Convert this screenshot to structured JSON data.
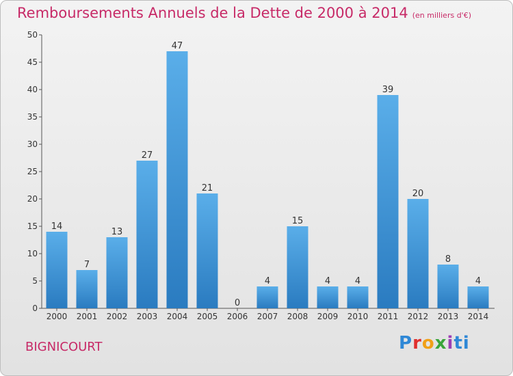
{
  "header": {
    "title": "Remboursements Annuels de la Dette de 2000 à 2014",
    "unit": "(en milliers d'€)"
  },
  "footer": {
    "commune": "BIGNICOURT",
    "brand": "Proxiti",
    "brand_letters": [
      "P",
      "r",
      "o",
      "x",
      "i",
      "ti"
    ]
  },
  "colors": {
    "title": "#c72a67",
    "bar_top": "#5aaee9",
    "bar_bottom": "#2a7bc0"
  },
  "chart_data": {
    "type": "bar",
    "categories": [
      "2000",
      "2001",
      "2002",
      "2003",
      "2004",
      "2005",
      "2006",
      "2007",
      "2008",
      "2009",
      "2010",
      "2011",
      "2012",
      "2013",
      "2014"
    ],
    "values": [
      14,
      7,
      13,
      27,
      47,
      21,
      0,
      4,
      15,
      4,
      4,
      39,
      20,
      8,
      4
    ],
    "ylim": [
      0,
      50
    ],
    "yticks": [
      0,
      5,
      10,
      15,
      20,
      25,
      30,
      35,
      40,
      45,
      50
    ],
    "grid": false,
    "legend": "none"
  }
}
